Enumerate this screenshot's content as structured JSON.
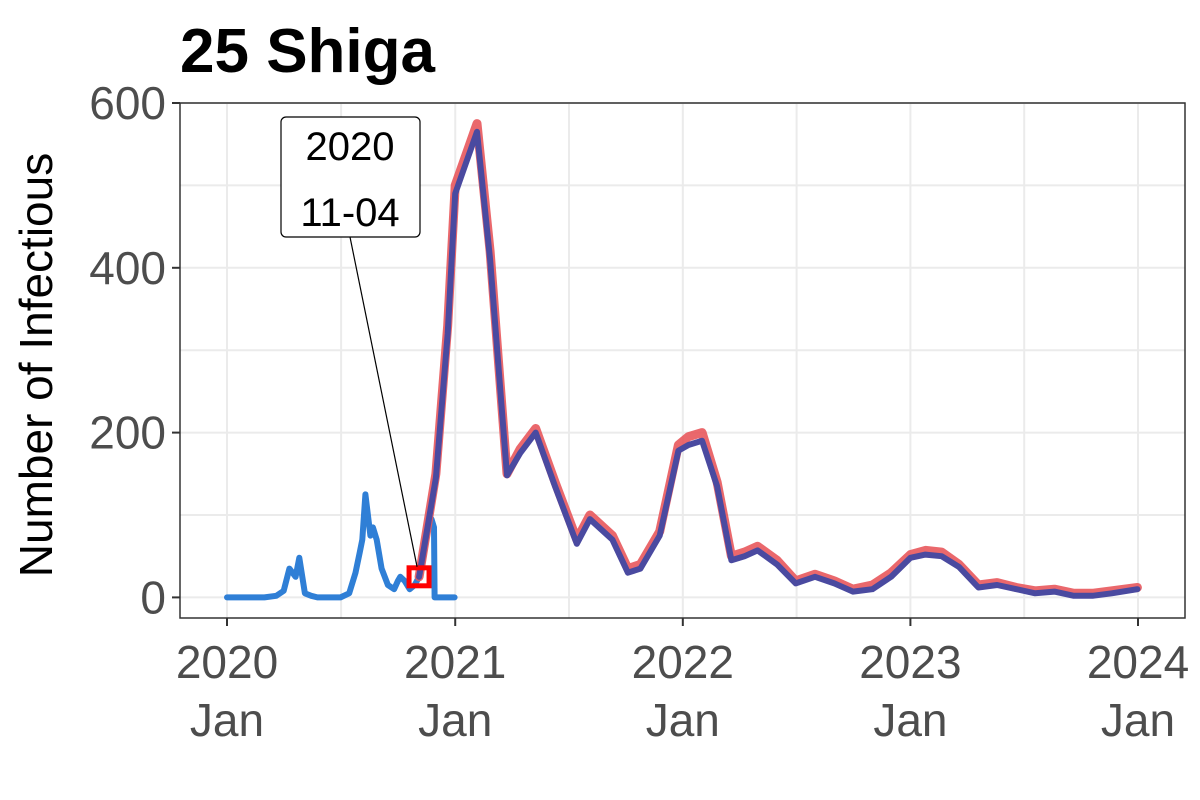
{
  "chart_data": {
    "type": "line",
    "title": "25 Shiga",
    "xlabel": "",
    "ylabel": "Number of Infectious",
    "xlim": [
      "2020-01-01",
      "2024-01-01"
    ],
    "ylim": [
      -25,
      600
    ],
    "y_ticks": [
      {
        "value": 0,
        "label": "0"
      },
      {
        "value": 200,
        "label": "200"
      },
      {
        "value": 400,
        "label": "400"
      },
      {
        "value": 600,
        "label": "600"
      }
    ],
    "x_ticks": [
      {
        "value": "2020-01-01",
        "label_year": "2020",
        "label_month": "Jan"
      },
      {
        "value": "2021-01-01",
        "label_year": "2021",
        "label_month": "Jan"
      },
      {
        "value": "2022-01-01",
        "label_year": "2022",
        "label_month": "Jan"
      },
      {
        "value": "2023-01-01",
        "label_year": "2023",
        "label_month": "Jan"
      },
      {
        "value": "2024-01-01",
        "label_year": "2024",
        "label_month": "Jan"
      }
    ],
    "grid": true,
    "legend": "none",
    "colors": {
      "observed": "#2f7fd6",
      "band": "#e8585c",
      "fitted": "#4a4aa0",
      "marker": "#ff0000"
    },
    "annotation": {
      "date": "2020-11-04",
      "value": 25,
      "line1": "2020",
      "line2": "11-04"
    },
    "series": [
      {
        "role": "observed",
        "x": [
          "2020-01-01",
          "2020-02-01",
          "2020-03-01",
          "2020-03-20",
          "2020-04-01",
          "2020-04-10",
          "2020-04-20",
          "2020-04-26",
          "2020-05-05",
          "2020-05-15",
          "2020-05-25",
          "2020-06-10",
          "2020-07-01",
          "2020-07-15",
          "2020-07-25",
          "2020-08-01",
          "2020-08-05",
          "2020-08-10",
          "2020-08-14",
          "2020-08-18",
          "2020-08-22",
          "2020-08-28",
          "2020-09-05",
          "2020-09-15",
          "2020-09-25",
          "2020-10-01",
          "2020-10-05",
          "2020-10-12",
          "2020-10-20",
          "2020-10-28",
          "2020-11-04",
          "2020-11-10",
          "2020-11-15",
          "2020-11-20",
          "2020-11-24",
          "2020-11-28",
          "2020-11-29",
          "2020-12-05",
          "2020-12-31"
        ],
        "y": [
          0,
          0,
          0,
          2,
          8,
          35,
          25,
          48,
          5,
          2,
          0,
          0,
          0,
          5,
          30,
          55,
          70,
          125,
          100,
          75,
          85,
          70,
          35,
          15,
          10,
          20,
          25,
          20,
          10,
          15,
          25,
          45,
          70,
          90,
          95,
          85,
          0,
          0,
          0
        ]
      },
      {
        "role": "fitted_band",
        "x": [
          "2020-11-04",
          "2020-12-01",
          "2020-12-20",
          "2021-01-01",
          "2021-01-15",
          "2021-02-05",
          "2021-02-26",
          "2021-03-25",
          "2021-04-15",
          "2021-05-10",
          "2021-06-10",
          "2021-07-15",
          "2021-08-05",
          "2021-09-10",
          "2021-10-05",
          "2021-10-25",
          "2021-11-25",
          "2021-12-25",
          "2022-01-10",
          "2022-02-01",
          "2022-02-25",
          "2022-03-20",
          "2022-04-10",
          "2022-05-01",
          "2022-06-01",
          "2022-07-01",
          "2022-08-01",
          "2022-09-01",
          "2022-10-01",
          "2022-11-01",
          "2022-12-01",
          "2023-01-01",
          "2023-01-25",
          "2023-02-20",
          "2023-03-20",
          "2023-04-20",
          "2023-05-20",
          "2023-06-20",
          "2023-07-20",
          "2023-08-20",
          "2023-09-20",
          "2023-10-20",
          "2023-11-20",
          "2023-12-31"
        ],
        "y": [
          25,
          150,
          330,
          500,
          530,
          575,
          420,
          150,
          180,
          205,
          140,
          70,
          100,
          75,
          35,
          40,
          80,
          185,
          195,
          200,
          140,
          50,
          55,
          62,
          45,
          20,
          28,
          20,
          10,
          15,
          30,
          52,
          57,
          55,
          40,
          15,
          18,
          12,
          8,
          10,
          5,
          5,
          8,
          12
        ]
      },
      {
        "role": "fitted",
        "x": [
          "2020-11-04",
          "2020-12-01",
          "2020-12-20",
          "2021-01-01",
          "2021-01-15",
          "2021-02-05",
          "2021-02-26",
          "2021-03-25",
          "2021-04-15",
          "2021-05-10",
          "2021-06-10",
          "2021-07-15",
          "2021-08-05",
          "2021-09-10",
          "2021-10-05",
          "2021-10-25",
          "2021-11-25",
          "2021-12-25",
          "2022-01-10",
          "2022-02-01",
          "2022-02-25",
          "2022-03-20",
          "2022-04-10",
          "2022-05-01",
          "2022-06-01",
          "2022-07-01",
          "2022-08-01",
          "2022-09-01",
          "2022-10-01",
          "2022-11-01",
          "2022-12-01",
          "2023-01-01",
          "2023-01-25",
          "2023-02-20",
          "2023-03-20",
          "2023-04-20",
          "2023-05-20",
          "2023-06-20",
          "2023-07-20",
          "2023-08-20",
          "2023-09-20",
          "2023-10-20",
          "2023-11-20",
          "2023-12-31"
        ],
        "y": [
          25,
          145,
          320,
          490,
          520,
          565,
          410,
          148,
          175,
          200,
          135,
          65,
          95,
          70,
          30,
          35,
          75,
          178,
          185,
          190,
          135,
          45,
          50,
          57,
          40,
          17,
          25,
          17,
          7,
          10,
          25,
          48,
          52,
          50,
          37,
          12,
          15,
          10,
          5,
          7,
          2,
          2,
          5,
          10
        ]
      }
    ]
  }
}
